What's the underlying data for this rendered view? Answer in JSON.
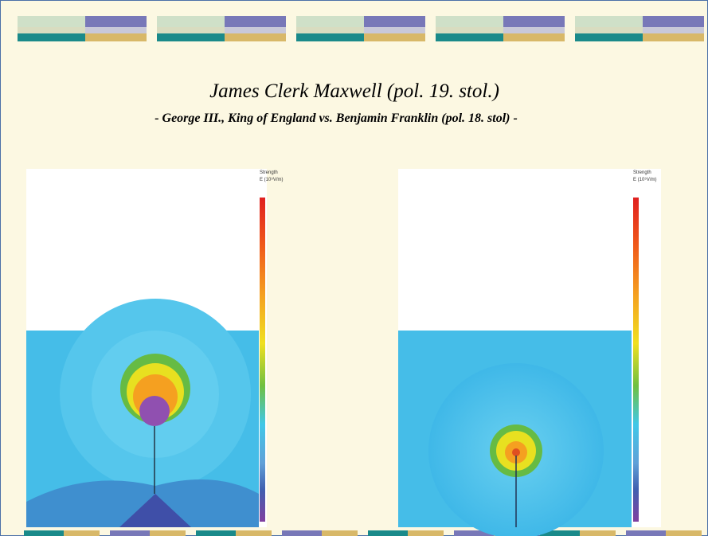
{
  "header": {
    "title": "James Clerk Maxwell (pol. 19. stol.)",
    "subtitle": "- George III., King of England  vs. Benjamin Franklin (pol. 18. stol) -"
  },
  "panels": [
    {
      "legend_title": "Strength",
      "legend_unit": "E (10⁵V/m)"
    },
    {
      "legend_title": "Strength",
      "legend_unit": "E (10⁵V/m)"
    }
  ]
}
